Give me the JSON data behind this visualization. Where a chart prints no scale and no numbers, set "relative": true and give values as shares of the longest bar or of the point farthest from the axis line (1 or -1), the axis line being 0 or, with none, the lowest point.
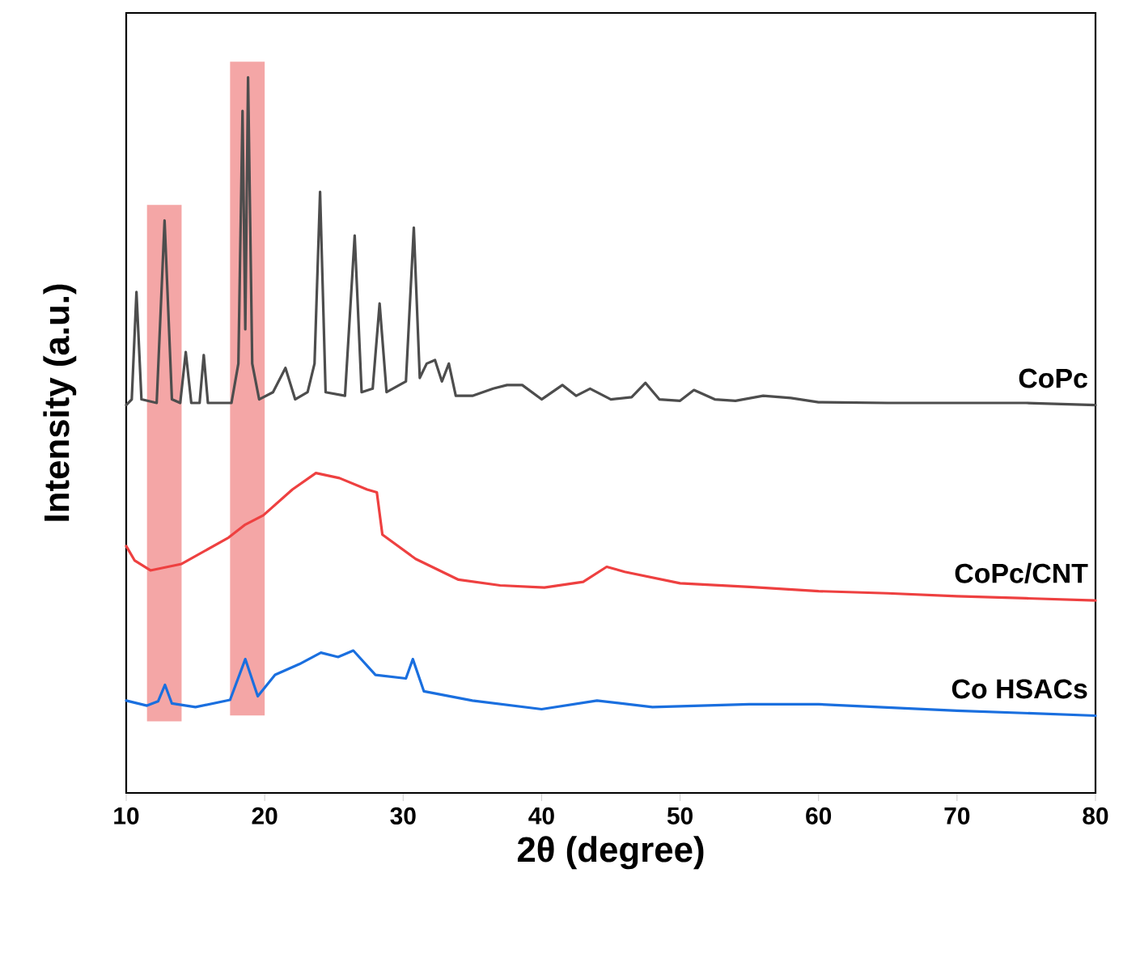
{
  "chart_data": {
    "type": "line",
    "relative": true,
    "xlabel": "2θ (degree)",
    "ylabel": "Intensity (a.u.)",
    "xlim": [
      10,
      80
    ],
    "xticks": [
      10,
      20,
      30,
      40,
      50,
      60,
      70,
      80
    ],
    "grid": false,
    "bands": [
      {
        "axis": "x",
        "from": 11.5,
        "to": 14,
        "color": "#f4a6a6"
      },
      {
        "axis": "x",
        "from": 17.5,
        "to": 20,
        "color": "#f4a6a6"
      }
    ],
    "series": [
      {
        "name": "CoPc",
        "color": "#4d4d4d",
        "x": [
          10,
          10.4,
          10.74,
          11.1,
          12.2,
          12.77,
          13.3,
          13.9,
          14.3,
          14.7,
          15.3,
          15.6,
          15.9,
          17.6,
          18.1,
          18.4,
          18.6,
          18.8,
          19.1,
          19.6,
          20.6,
          21.5,
          22.2,
          23.1,
          23.6,
          24.0,
          24.4,
          25.8,
          26.5,
          27.0,
          27.8,
          28.3,
          28.8,
          30.2,
          30.77,
          31.2,
          31.7,
          32.3,
          32.8,
          33.3,
          33.8,
          35,
          36.5,
          37.5,
          38.6,
          40,
          41.5,
          42.5,
          43.5,
          45,
          46.5,
          47.5,
          48.5,
          50,
          51,
          52.5,
          54,
          56,
          58,
          60,
          65,
          70,
          75,
          80
        ],
        "values": [
          0.542,
          0.55,
          0.7,
          0.55,
          0.545,
          0.8,
          0.55,
          0.545,
          0.616,
          0.545,
          0.545,
          0.612,
          0.545,
          0.545,
          0.6,
          0.953,
          0.648,
          1.0,
          0.6,
          0.55,
          0.56,
          0.594,
          0.55,
          0.56,
          0.6,
          0.84,
          0.56,
          0.555,
          0.779,
          0.56,
          0.565,
          0.684,
          0.56,
          0.575,
          0.79,
          0.58,
          0.6,
          0.605,
          0.575,
          0.6,
          0.555,
          0.555,
          0.565,
          0.57,
          0.57,
          0.55,
          0.57,
          0.555,
          0.565,
          0.55,
          0.553,
          0.573,
          0.55,
          0.548,
          0.563,
          0.55,
          0.548,
          0.555,
          0.552,
          0.546,
          0.545,
          0.545,
          0.545,
          0.542
        ]
      },
      {
        "name": "CoPc/CNT",
        "color": "#ee4040",
        "x": [
          10,
          10.6,
          11.75,
          14,
          17.4,
          18.6,
          19.9,
          22,
          23.7,
          25.4,
          27.4,
          28.1,
          28.5,
          30.9,
          34,
          37,
          40.2,
          43,
          44.7,
          46,
          50,
          55,
          60,
          65,
          70,
          75,
          80
        ],
        "values": [
          0.345,
          0.325,
          0.311,
          0.32,
          0.357,
          0.375,
          0.388,
          0.424,
          0.447,
          0.44,
          0.424,
          0.42,
          0.361,
          0.327,
          0.298,
          0.29,
          0.287,
          0.295,
          0.316,
          0.309,
          0.293,
          0.288,
          0.282,
          0.279,
          0.275,
          0.272,
          0.269
        ]
      },
      {
        "name": "Co HSACs",
        "color": "#1a6fdf",
        "x": [
          10,
          11.5,
          12.3,
          12.8,
          13.3,
          15,
          17.5,
          18.6,
          19.5,
          20.75,
          22.5,
          24.06,
          25.3,
          26.4,
          28,
          30.2,
          30.7,
          31.5,
          35,
          40,
          44,
          48,
          55,
          60,
          70,
          80
        ],
        "values": [
          0.129,
          0.122,
          0.128,
          0.151,
          0.125,
          0.12,
          0.13,
          0.187,
          0.135,
          0.165,
          0.18,
          0.196,
          0.19,
          0.199,
          0.165,
          0.16,
          0.187,
          0.142,
          0.129,
          0.117,
          0.129,
          0.12,
          0.124,
          0.124,
          0.115,
          0.108
        ]
      }
    ]
  }
}
